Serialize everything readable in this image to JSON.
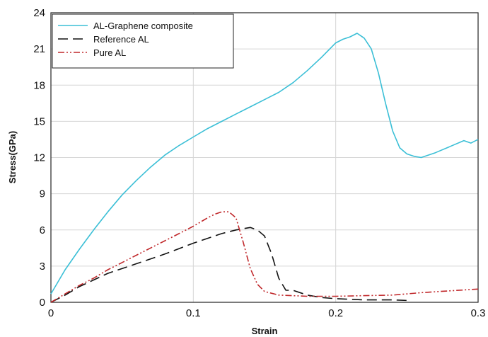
{
  "chart_data": {
    "type": "line",
    "xlabel": "Strain",
    "ylabel": "Stress(GPa)",
    "xlim": [
      0,
      0.3
    ],
    "ylim": [
      0,
      24
    ],
    "xticks": [
      0,
      0.1,
      0.2,
      0.3
    ],
    "xtick_labels": [
      "0",
      "0.1",
      "0.2",
      "0.3"
    ],
    "yticks": [
      0,
      3,
      6,
      9,
      12,
      15,
      18,
      21,
      24
    ],
    "ytick_labels": [
      "0",
      "3",
      "6",
      "9",
      "12",
      "15",
      "18",
      "21",
      "24"
    ],
    "grid": true,
    "legend_position": "top-left",
    "series": [
      {
        "name": "AL-Graphene composite",
        "color": "#3bbfd6",
        "style": "solid",
        "x": [
          0,
          0.005,
          0.01,
          0.02,
          0.03,
          0.04,
          0.05,
          0.06,
          0.07,
          0.08,
          0.09,
          0.1,
          0.11,
          0.12,
          0.13,
          0.14,
          0.15,
          0.16,
          0.17,
          0.18,
          0.19,
          0.2,
          0.205,
          0.21,
          0.215,
          0.22,
          0.225,
          0.23,
          0.235,
          0.24,
          0.245,
          0.25,
          0.255,
          0.26,
          0.27,
          0.28,
          0.29,
          0.295,
          0.3
        ],
        "y": [
          0.7,
          1.7,
          2.7,
          4.4,
          6.0,
          7.5,
          8.9,
          10.1,
          11.2,
          12.2,
          13.0,
          13.7,
          14.4,
          15.0,
          15.6,
          16.2,
          16.8,
          17.4,
          18.2,
          19.2,
          20.3,
          21.5,
          21.8,
          22.0,
          22.3,
          21.9,
          21.0,
          19.0,
          16.5,
          14.2,
          12.8,
          12.3,
          12.1,
          12.0,
          12.4,
          12.9,
          13.4,
          13.2,
          13.5
        ]
      },
      {
        "name": "Reference AL",
        "color": "#111111",
        "style": "dashed",
        "x": [
          0,
          0.01,
          0.02,
          0.04,
          0.06,
          0.08,
          0.1,
          0.12,
          0.13,
          0.14,
          0.145,
          0.15,
          0.155,
          0.16,
          0.165,
          0.17,
          0.18,
          0.19,
          0.2,
          0.21,
          0.22,
          0.23,
          0.24,
          0.25
        ],
        "y": [
          0,
          0.6,
          1.3,
          2.4,
          3.2,
          4.0,
          4.9,
          5.7,
          6.0,
          6.2,
          6.0,
          5.5,
          4.0,
          2.0,
          1.0,
          1.0,
          0.6,
          0.4,
          0.3,
          0.25,
          0.2,
          0.2,
          0.2,
          0.15
        ]
      },
      {
        "name": "Pure AL",
        "color": "#c0282b",
        "style": "dashdot",
        "x": [
          0,
          0.01,
          0.02,
          0.03,
          0.04,
          0.05,
          0.06,
          0.07,
          0.08,
          0.09,
          0.1,
          0.11,
          0.115,
          0.12,
          0.125,
          0.13,
          0.135,
          0.14,
          0.145,
          0.15,
          0.16,
          0.17,
          0.18,
          0.19,
          0.2,
          0.22,
          0.24,
          0.26,
          0.28,
          0.3
        ],
        "y": [
          0,
          0.7,
          1.4,
          2.0,
          2.7,
          3.3,
          3.9,
          4.5,
          5.1,
          5.7,
          6.3,
          7.0,
          7.3,
          7.5,
          7.5,
          7.0,
          5.0,
          2.8,
          1.5,
          0.9,
          0.6,
          0.55,
          0.5,
          0.5,
          0.5,
          0.55,
          0.6,
          0.8,
          0.95,
          1.1
        ]
      }
    ]
  }
}
